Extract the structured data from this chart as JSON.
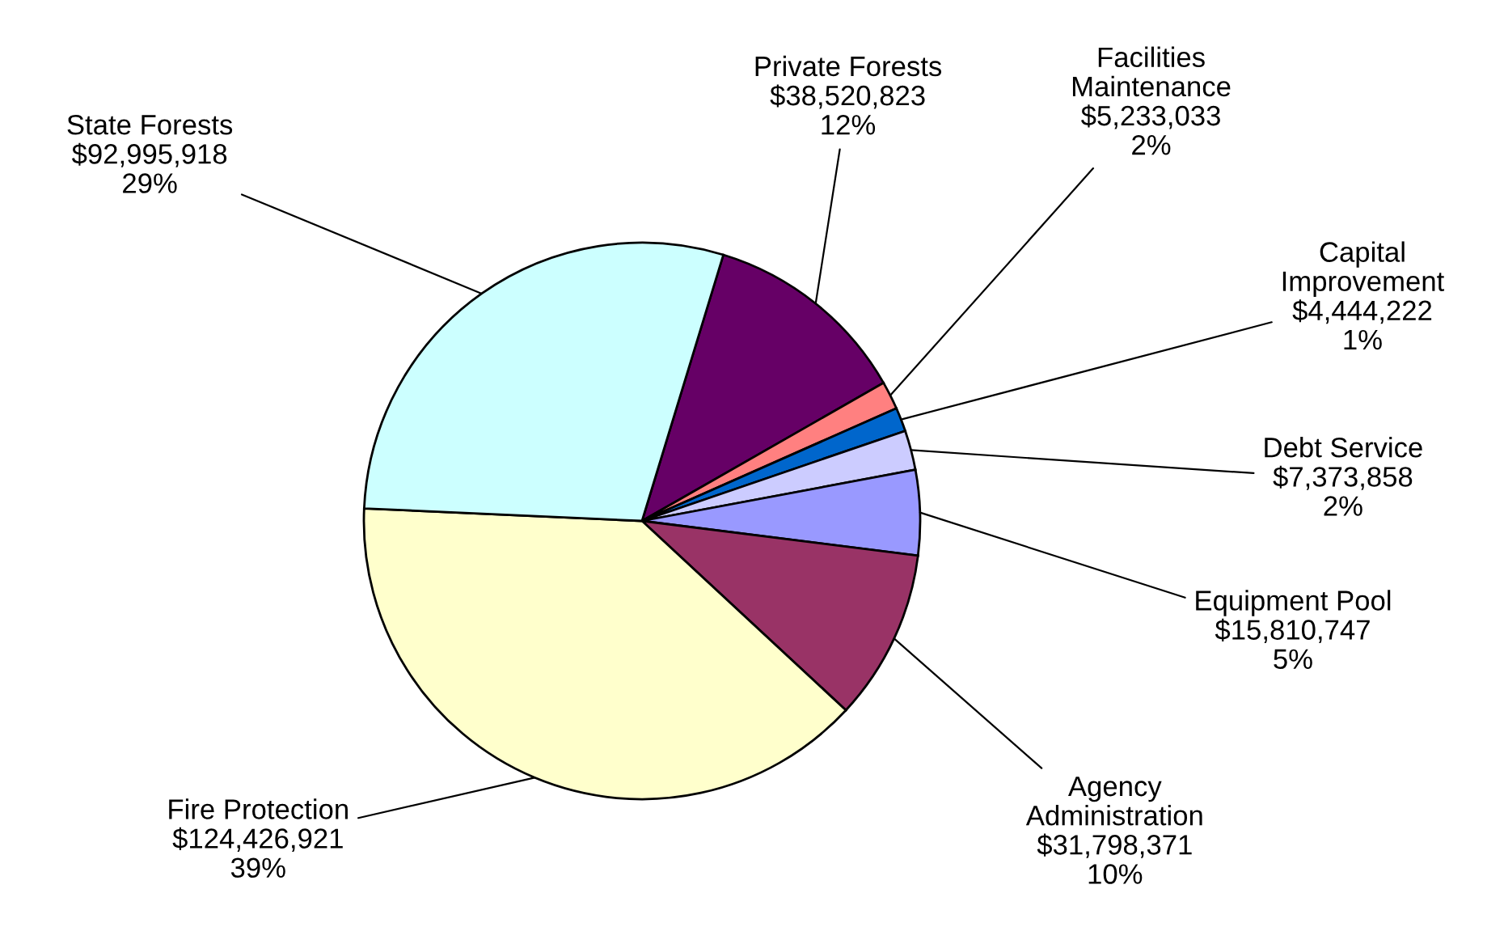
{
  "chart_data": {
    "type": "pie",
    "categories": [
      "Private Forests",
      "Facilities\nMaintenance",
      "Capital\nImprovement",
      "Debt Service",
      "Equipment Pool",
      "Agency\nAdministration",
      "Fire Protection",
      "State Forests"
    ],
    "values": [
      38520823,
      5233033,
      4444222,
      7373858,
      15810747,
      31798371,
      124426921,
      92995918
    ],
    "colors": [
      "#660066",
      "#ff8080",
      "#0066cc",
      "#ccccff",
      "#9999ff",
      "#993366",
      "#ffffcc",
      "#ccffff"
    ],
    "value_labels": [
      "$38,520,823\n12%",
      "$5,233,033\n2%",
      "$4,444,222\n1%",
      "$7,373,858\n2%",
      "$15,810,747\n5%",
      "$31,798,371\n10%",
      "$124,426,921\n39%",
      "$92,995,918\n29%"
    ],
    "legend": false
  }
}
